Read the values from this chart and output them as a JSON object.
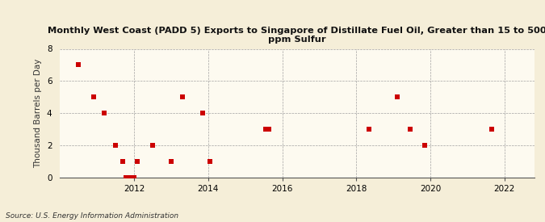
{
  "title": "Monthly West Coast (PADD 5) Exports to Singapore of Distillate Fuel Oil, Greater than 15 to 500\nppm Sulfur",
  "ylabel": "Thousand Barrels per Day",
  "source": "Source: U.S. Energy Information Administration",
  "background_color": "#f5eed8",
  "plot_background_color": "#fdfaf0",
  "point_color": "#cc0000",
  "ylim": [
    0,
    8
  ],
  "yticks": [
    0,
    2,
    4,
    6,
    8
  ],
  "xlim": [
    2010.0,
    2022.8
  ],
  "xticks": [
    2012,
    2014,
    2016,
    2018,
    2020,
    2022
  ],
  "data_x": [
    2010.5,
    2010.9,
    2011.2,
    2011.5,
    2011.7,
    2011.78,
    2011.88,
    2012.0,
    2012.08,
    2012.5,
    2013.0,
    2013.3,
    2013.85,
    2014.05,
    2015.55,
    2015.65,
    2018.35,
    2019.1,
    2019.45,
    2019.85,
    2021.65
  ],
  "data_y": [
    7,
    5,
    4,
    2,
    1,
    0,
    0,
    0,
    1,
    2,
    1,
    5,
    4,
    1,
    3,
    3,
    3,
    5,
    3,
    2,
    3
  ]
}
